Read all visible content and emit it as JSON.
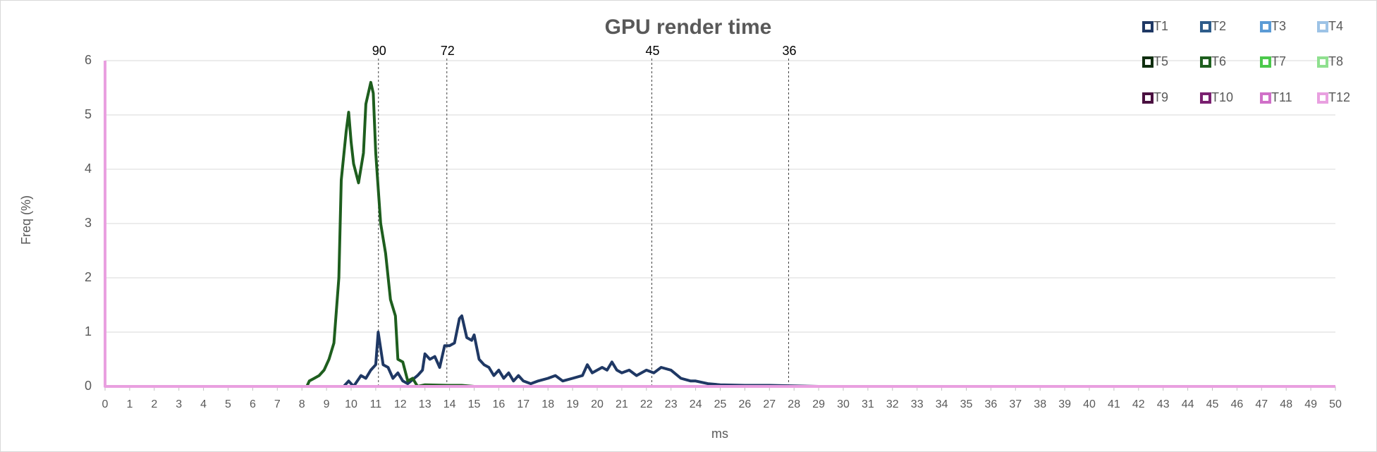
{
  "chart_data": {
    "type": "line",
    "title": "GPU render time",
    "x_label": "ms",
    "y_label": "Freq (%)",
    "xlim": [
      0,
      50
    ],
    "xticks": [
      0,
      1,
      2,
      3,
      4,
      5,
      6,
      7,
      8,
      9,
      10,
      11,
      12,
      13,
      14,
      15,
      16,
      17,
      18,
      19,
      20,
      21,
      22,
      23,
      24,
      25,
      26,
      27,
      28,
      29,
      30,
      31,
      32,
      33,
      34,
      35,
      36,
      37,
      38,
      39,
      40,
      41,
      42,
      43,
      44,
      45,
      46,
      47,
      48,
      49,
      50
    ],
    "ylim": [
      0,
      6
    ],
    "yticks": [
      0,
      1,
      2,
      3,
      4,
      5,
      6
    ],
    "grid": true,
    "legend": "top-right",
    "annotations": [
      {
        "x": 11.11,
        "label": "90"
      },
      {
        "x": 13.89,
        "label": "72"
      },
      {
        "x": 22.22,
        "label": "45"
      },
      {
        "x": 27.78,
        "label": "36"
      }
    ],
    "series": [
      {
        "name": "T1",
        "color": "#1f3864",
        "x": [
          9.7,
          9.9,
          10.1,
          10.4,
          10.6,
          10.8,
          11.0,
          11.1,
          11.3,
          11.5,
          11.7,
          11.9,
          12.1,
          12.3,
          12.7,
          12.9,
          13.0,
          13.2,
          13.4,
          13.6,
          13.8,
          14.0,
          14.2,
          14.4,
          14.5,
          14.7,
          14.9,
          15.0,
          15.2,
          15.4,
          15.6,
          15.8,
          16.0,
          16.2,
          16.4,
          16.6,
          16.8,
          17.0,
          17.3,
          17.6,
          18.0,
          18.3,
          18.6,
          19.0,
          19.4,
          19.6,
          19.8,
          20.0,
          20.2,
          20.4,
          20.6,
          20.8,
          21.0,
          21.3,
          21.6,
          22.0,
          22.3,
          22.6,
          23.0,
          23.4,
          23.8,
          24.0,
          24.5,
          25,
          26,
          27,
          28,
          29
        ],
        "values": [
          0,
          0.1,
          0,
          0.2,
          0.15,
          0.3,
          0.4,
          1.0,
          0.4,
          0.35,
          0.15,
          0.25,
          0.1,
          0.05,
          0.2,
          0.3,
          0.6,
          0.5,
          0.55,
          0.35,
          0.75,
          0.75,
          0.8,
          1.25,
          1.3,
          0.9,
          0.85,
          0.95,
          0.5,
          0.4,
          0.35,
          0.2,
          0.3,
          0.15,
          0.25,
          0.1,
          0.2,
          0.1,
          0.05,
          0.1,
          0.15,
          0.2,
          0.1,
          0.15,
          0.2,
          0.4,
          0.25,
          0.3,
          0.35,
          0.3,
          0.45,
          0.3,
          0.25,
          0.3,
          0.2,
          0.3,
          0.25,
          0.35,
          0.3,
          0.15,
          0.1,
          0.1,
          0.05,
          0.03,
          0.02,
          0.02,
          0.01,
          0
        ]
      },
      {
        "name": "T2",
        "color": "#2e5c8a",
        "x": [],
        "values": []
      },
      {
        "name": "T3",
        "color": "#5b9bd5",
        "x": [],
        "values": []
      },
      {
        "name": "T4",
        "color": "#9dc3e6",
        "x": [],
        "values": []
      },
      {
        "name": "T5",
        "color": "#0f2e0f",
        "x": [],
        "values": []
      },
      {
        "name": "T6",
        "color": "#1e5e1e",
        "x": [
          8.2,
          8.3,
          8.5,
          8.7,
          8.9,
          9.1,
          9.3,
          9.5,
          9.6,
          9.8,
          9.9,
          10.0,
          10.1,
          10.3,
          10.5,
          10.6,
          10.8,
          10.9,
          11.0,
          11.2,
          11.4,
          11.6,
          11.8,
          11.9,
          12.1,
          12.3,
          12.5,
          12.7,
          13.0,
          14.0,
          14.5,
          15.0
        ],
        "values": [
          0,
          0.1,
          0.15,
          0.2,
          0.3,
          0.5,
          0.8,
          2.0,
          3.8,
          4.7,
          5.05,
          4.5,
          4.1,
          3.75,
          4.3,
          5.2,
          5.6,
          5.4,
          4.3,
          3.0,
          2.45,
          1.6,
          1.3,
          0.5,
          0.45,
          0.1,
          0.15,
          0,
          0.03,
          0.02,
          0.02,
          0
        ]
      },
      {
        "name": "T7",
        "color": "#4cc94c",
        "x": [],
        "values": []
      },
      {
        "name": "T8",
        "color": "#8fe08f",
        "x": [],
        "values": []
      },
      {
        "name": "T9",
        "color": "#4a1040",
        "x": [],
        "values": []
      },
      {
        "name": "T10",
        "color": "#7a2070",
        "x": [],
        "values": []
      },
      {
        "name": "T11",
        "color": "#d070c8",
        "x": [],
        "values": []
      },
      {
        "name": "T12",
        "color": "#e9a0e0",
        "x": [
          0,
          0,
          50
        ],
        "values": [
          6,
          0,
          0
        ]
      }
    ]
  }
}
